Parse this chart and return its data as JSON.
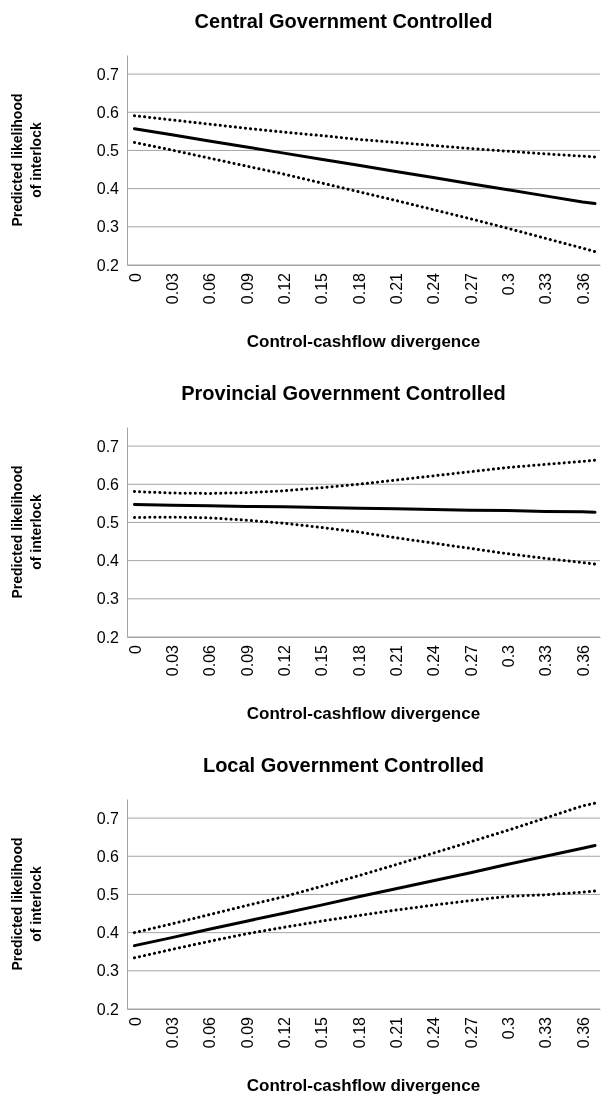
{
  "chart_data": [
    {
      "type": "line",
      "title": "Central Government Controlled",
      "xlabel": "Control-cashflow divergence",
      "ylabel": "Predicted likelihood of interlock",
      "x": [
        0,
        0.03,
        0.06,
        0.09,
        0.12,
        0.15,
        0.18,
        0.21,
        0.24,
        0.27,
        0.3,
        0.33,
        0.36,
        0.37
      ],
      "xlim": [
        -0.006,
        0.374
      ],
      "xticks": [
        0,
        0.03,
        0.06,
        0.09,
        0.12,
        0.15,
        0.18,
        0.21,
        0.24,
        0.27,
        0.3,
        0.33,
        0.36
      ],
      "ylim": [
        0.2,
        0.75
      ],
      "yticks": [
        0.2,
        0.3,
        0.4,
        0.5,
        0.6,
        0.7
      ],
      "grid": "y",
      "marker": "none",
      "series": [
        {
          "color": "#000000",
          "line_style": "solid",
          "values": [
            0.557,
            0.541,
            0.525,
            0.509,
            0.493,
            0.477,
            0.461,
            0.445,
            0.429,
            0.413,
            0.397,
            0.381,
            0.365,
            0.361
          ]
        },
        {
          "color": "#000000",
          "line_style": "dotted",
          "values": [
            0.591,
            0.58,
            0.569,
            0.558,
            0.548,
            0.539,
            0.529,
            0.521,
            0.513,
            0.505,
            0.498,
            0.491,
            0.485,
            0.483
          ]
        },
        {
          "color": "#000000",
          "line_style": "dotted",
          "values": [
            0.521,
            0.501,
            0.48,
            0.459,
            0.438,
            0.415,
            0.392,
            0.369,
            0.345,
            0.321,
            0.296,
            0.27,
            0.244,
            0.235
          ]
        }
      ]
    },
    {
      "type": "line",
      "title": "Provincial Government Controlled",
      "xlabel": "Control-cashflow divergence",
      "ylabel": "Predicted likelihood of interlock",
      "x": [
        0,
        0.03,
        0.06,
        0.09,
        0.12,
        0.15,
        0.18,
        0.21,
        0.24,
        0.27,
        0.3,
        0.33,
        0.36,
        0.37
      ],
      "xlim": [
        -0.006,
        0.374
      ],
      "xticks": [
        0,
        0.03,
        0.06,
        0.09,
        0.12,
        0.15,
        0.18,
        0.21,
        0.24,
        0.27,
        0.3,
        0.33,
        0.36
      ],
      "ylim": [
        0.2,
        0.75
      ],
      "yticks": [
        0.2,
        0.3,
        0.4,
        0.5,
        0.6,
        0.7
      ],
      "grid": "y",
      "marker": "none",
      "series": [
        {
          "color": "#000000",
          "line_style": "solid",
          "values": [
            0.547,
            0.545,
            0.544,
            0.542,
            0.541,
            0.539,
            0.537,
            0.536,
            0.534,
            0.532,
            0.531,
            0.529,
            0.528,
            0.527
          ]
        },
        {
          "color": "#000000",
          "line_style": "dotted",
          "values": [
            0.581,
            0.577,
            0.576,
            0.578,
            0.583,
            0.591,
            0.6,
            0.611,
            0.622,
            0.633,
            0.644,
            0.652,
            0.66,
            0.663
          ]
        },
        {
          "color": "#000000",
          "line_style": "dotted",
          "values": [
            0.513,
            0.514,
            0.512,
            0.506,
            0.498,
            0.487,
            0.475,
            0.46,
            0.446,
            0.432,
            0.418,
            0.406,
            0.395,
            0.391
          ]
        }
      ]
    },
    {
      "type": "line",
      "title": "Local Government Controlled",
      "xlabel": "Control-cashflow divergence",
      "ylabel": "Predicted likelihood of interlock",
      "x": [
        0,
        0.03,
        0.06,
        0.09,
        0.12,
        0.15,
        0.18,
        0.21,
        0.24,
        0.27,
        0.3,
        0.33,
        0.36,
        0.37
      ],
      "xlim": [
        -0.006,
        0.374
      ],
      "xticks": [
        0,
        0.03,
        0.06,
        0.09,
        0.12,
        0.15,
        0.18,
        0.21,
        0.24,
        0.27,
        0.3,
        0.33,
        0.36
      ],
      "ylim": [
        0.2,
        0.75
      ],
      "yticks": [
        0.2,
        0.3,
        0.4,
        0.5,
        0.6,
        0.7
      ],
      "grid": "y",
      "marker": "none",
      "series": [
        {
          "color": "#000000",
          "line_style": "solid",
          "values": [
            0.366,
            0.387,
            0.409,
            0.43,
            0.451,
            0.472,
            0.494,
            0.515,
            0.536,
            0.557,
            0.579,
            0.6,
            0.621,
            0.628
          ]
        },
        {
          "color": "#000000",
          "line_style": "dotted",
          "values": [
            0.4,
            0.423,
            0.447,
            0.471,
            0.494,
            0.521,
            0.549,
            0.578,
            0.608,
            0.638,
            0.668,
            0.7,
            0.732,
            0.739
          ]
        },
        {
          "color": "#000000",
          "line_style": "dotted",
          "values": [
            0.334,
            0.356,
            0.377,
            0.397,
            0.414,
            0.43,
            0.445,
            0.459,
            0.472,
            0.484,
            0.495,
            0.499,
            0.506,
            0.509
          ]
        }
      ]
    }
  ]
}
